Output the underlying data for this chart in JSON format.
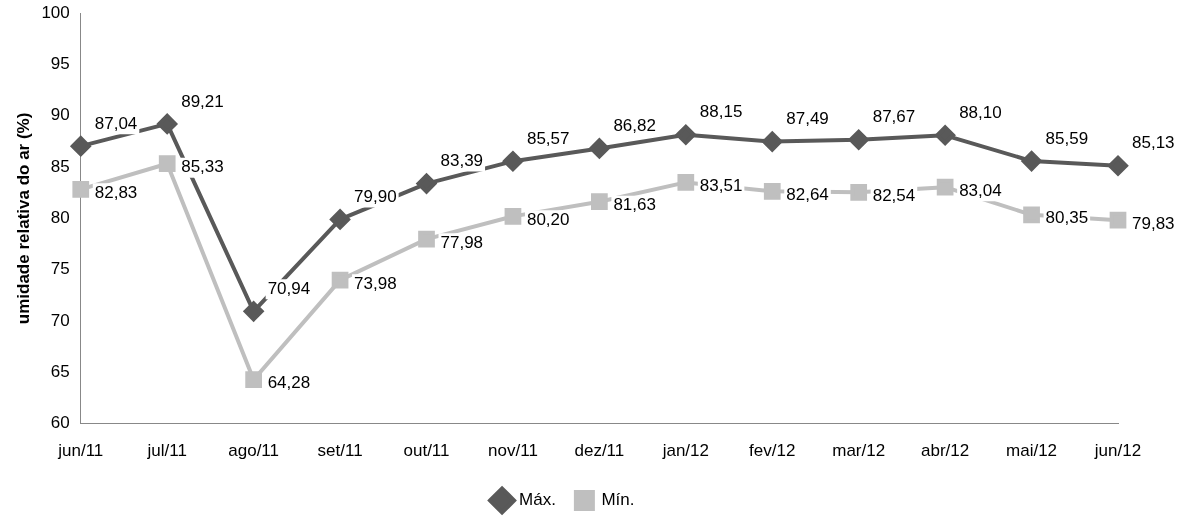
{
  "chart_data": {
    "type": "line",
    "ylabel": "umidade relativa do ar (%)",
    "categories": [
      "jun/11",
      "jul/11",
      "ago/11",
      "set/11",
      "out/11",
      "nov/11",
      "dez/11",
      "jan/12",
      "fev/12",
      "mar/12",
      "abr/12",
      "mai/12",
      "jun/12"
    ],
    "ylim": [
      60,
      100
    ],
    "yticks": [
      60,
      65,
      70,
      75,
      80,
      85,
      90,
      95,
      100
    ],
    "grid": false,
    "legend": "bottom",
    "line_style": "solid",
    "series": [
      {
        "name": "Máx.",
        "color": "#595959",
        "marker": "diamond",
        "values": [
          87.04,
          89.21,
          70.94,
          79.9,
          83.39,
          85.57,
          86.82,
          88.15,
          87.49,
          87.67,
          88.1,
          85.59,
          85.13
        ],
        "value_labels": [
          "87,04",
          "89,21",
          "70,94",
          "79,90",
          "83,39",
          "85,57",
          "86,82",
          "88,15",
          "87,49",
          "87,67",
          "88,10",
          "85,59",
          "85,13"
        ]
      },
      {
        "name": "Mín.",
        "color": "#bfbfbf",
        "marker": "square",
        "values": [
          82.83,
          85.33,
          64.28,
          73.98,
          77.98,
          80.2,
          81.63,
          83.51,
          82.64,
          82.54,
          83.04,
          80.35,
          79.83
        ],
        "value_labels": [
          "82,83",
          "85,33",
          "64,28",
          "73,98",
          "77,98",
          "80,20",
          "81,63",
          "83,51",
          "82,64",
          "82,54",
          "83,04",
          "80,35",
          "79,83"
        ]
      }
    ]
  }
}
